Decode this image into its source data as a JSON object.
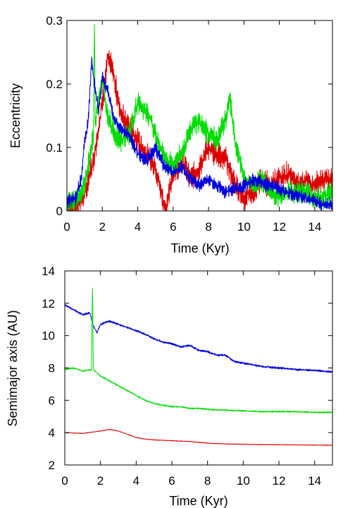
{
  "chart_data": [
    {
      "type": "line",
      "title": "",
      "xlabel": "Time (Kyr)",
      "ylabel": "Eccentricity",
      "xlim": [
        0,
        15
      ],
      "ylim": [
        0,
        0.3
      ],
      "xticks": [
        0,
        2,
        4,
        6,
        8,
        10,
        12,
        14
      ],
      "xtick_labels": [
        "0",
        "2",
        "4",
        "6",
        "8",
        "10",
        "12",
        "14"
      ],
      "yticks": [
        0,
        0.1,
        0.2,
        0.3
      ],
      "ytick_labels": [
        "0",
        "0.1",
        "0.2",
        "0.3"
      ],
      "grid": false,
      "legend": "none",
      "series": [
        {
          "color": "#dd0000",
          "x": [
            0,
            0.5,
            1.0,
            1.5,
            2.0,
            2.3,
            2.6,
            3.0,
            3.5,
            4.0,
            4.5,
            5.0,
            5.4,
            5.6,
            6.0,
            6.5,
            7.0,
            7.5,
            8.0,
            8.5,
            9.0,
            9.5,
            10.0,
            10.5,
            11.0,
            11.5,
            12.0,
            12.5,
            13.0,
            13.5,
            14.0,
            14.5,
            15.0
          ],
          "y": [
            0.005,
            0.01,
            0.025,
            0.08,
            0.17,
            0.24,
            0.22,
            0.16,
            0.13,
            0.11,
            0.09,
            0.07,
            0.02,
            0.0,
            0.06,
            0.08,
            0.05,
            0.07,
            0.1,
            0.09,
            0.08,
            0.04,
            0.02,
            0.03,
            0.05,
            0.04,
            0.05,
            0.06,
            0.04,
            0.05,
            0.04,
            0.05,
            0.05
          ],
          "noise": 0.022
        },
        {
          "color": "#00dd00",
          "x": [
            0,
            0.5,
            1.0,
            1.5,
            1.55,
            1.6,
            1.8,
            2.0,
            2.3,
            2.7,
            3.0,
            3.5,
            4.0,
            4.3,
            4.8,
            5.2,
            5.6,
            6.0,
            6.5,
            7.0,
            7.5,
            8.0,
            8.5,
            9.0,
            9.2,
            9.5,
            10.0,
            10.5,
            11.0,
            11.5,
            12.0,
            12.5,
            13.0,
            13.5,
            14.0,
            14.5,
            15.0
          ],
          "y": [
            0.015,
            0.015,
            0.04,
            0.12,
            0.3,
            0.14,
            0.17,
            0.21,
            0.15,
            0.12,
            0.11,
            0.12,
            0.17,
            0.16,
            0.14,
            0.1,
            0.08,
            0.07,
            0.09,
            0.13,
            0.14,
            0.12,
            0.11,
            0.15,
            0.18,
            0.11,
            0.05,
            0.04,
            0.05,
            0.03,
            0.02,
            0.03,
            0.03,
            0.03,
            0.02,
            0.02,
            0.03
          ],
          "noise": 0.02
        },
        {
          "color": "#0000dd",
          "x": [
            0,
            0.5,
            0.8,
            1.0,
            1.2,
            1.4,
            1.6,
            1.8,
            2.0,
            2.3,
            2.6,
            3.0,
            3.5,
            4.0,
            4.5,
            5.0,
            5.5,
            6.0,
            6.5,
            7.0,
            7.5,
            8.0,
            8.5,
            9.0,
            9.5,
            10.0,
            10.5,
            11.0,
            11.5,
            12.0,
            12.5,
            13.0,
            13.5,
            14.0,
            14.5,
            15.0
          ],
          "y": [
            0.015,
            0.02,
            0.05,
            0.11,
            0.14,
            0.24,
            0.19,
            0.16,
            0.21,
            0.19,
            0.15,
            0.13,
            0.12,
            0.09,
            0.08,
            0.1,
            0.07,
            0.06,
            0.07,
            0.05,
            0.04,
            0.05,
            0.04,
            0.03,
            0.035,
            0.04,
            0.05,
            0.045,
            0.04,
            0.035,
            0.03,
            0.025,
            0.02,
            0.015,
            0.01,
            0.01
          ],
          "noise": 0.012
        }
      ]
    },
    {
      "type": "line",
      "title": "",
      "xlabel": "Time (Kyr)",
      "ylabel": "Semimajor axis (AU)",
      "xlim": [
        0,
        15
      ],
      "ylim": [
        2,
        14
      ],
      "xticks": [
        0,
        2,
        4,
        6,
        8,
        10,
        12,
        14
      ],
      "xtick_labels": [
        "0",
        "2",
        "4",
        "6",
        "8",
        "10",
        "12",
        "14"
      ],
      "yticks": [
        2,
        4,
        6,
        8,
        10,
        12,
        14
      ],
      "ytick_labels": [
        "2",
        "4",
        "6",
        "8",
        "10",
        "12",
        "14"
      ],
      "grid": false,
      "legend": "none",
      "series": [
        {
          "color": "#0000dd",
          "x": [
            0,
            0.5,
            1.0,
            1.4,
            1.6,
            1.8,
            2.0,
            2.5,
            3.0,
            3.5,
            4.0,
            4.5,
            5.0,
            5.5,
            6.0,
            6.5,
            7.0,
            7.5,
            8.0,
            8.5,
            9.0,
            9.5,
            10.0,
            11.0,
            12.0,
            13.0,
            14.0,
            15.0
          ],
          "y": [
            11.9,
            11.6,
            11.3,
            11.4,
            10.6,
            10.2,
            10.7,
            10.9,
            10.7,
            10.5,
            10.3,
            10.1,
            9.8,
            9.6,
            9.5,
            9.3,
            9.4,
            9.1,
            9.0,
            8.8,
            8.8,
            8.4,
            8.3,
            8.1,
            8.0,
            7.9,
            7.85,
            7.75
          ],
          "noise": 0.07
        },
        {
          "color": "#00dd00",
          "x": [
            0,
            0.5,
            1.0,
            1.5,
            1.55,
            1.6,
            1.7,
            2.0,
            2.5,
            3.0,
            3.5,
            4.0,
            4.5,
            5.0,
            5.5,
            6.0,
            6.5,
            7.0,
            7.5,
            8.0,
            8.5,
            9.0,
            9.5,
            10.0,
            11.0,
            12.0,
            13.0,
            14.0,
            15.0
          ],
          "y": [
            7.9,
            8.0,
            7.8,
            7.9,
            13.4,
            7.9,
            7.8,
            7.5,
            7.2,
            6.9,
            6.6,
            6.3,
            6.0,
            5.8,
            5.7,
            5.6,
            5.6,
            5.5,
            5.5,
            5.45,
            5.4,
            5.4,
            5.35,
            5.35,
            5.3,
            5.3,
            5.3,
            5.25,
            5.25
          ],
          "noise": 0.05
        },
        {
          "color": "#dd0000",
          "x": [
            0,
            1.0,
            2.0,
            2.5,
            3.0,
            3.5,
            4.0,
            4.5,
            5.0,
            6.0,
            7.0,
            8.0,
            9.0,
            10.0,
            11.0,
            12.0,
            13.0,
            14.0,
            15.0
          ],
          "y": [
            4.0,
            3.95,
            4.1,
            4.2,
            4.1,
            3.9,
            3.7,
            3.6,
            3.55,
            3.5,
            3.45,
            3.35,
            3.3,
            3.28,
            3.26,
            3.25,
            3.24,
            3.23,
            3.22
          ],
          "noise": 0.02
        }
      ]
    }
  ]
}
